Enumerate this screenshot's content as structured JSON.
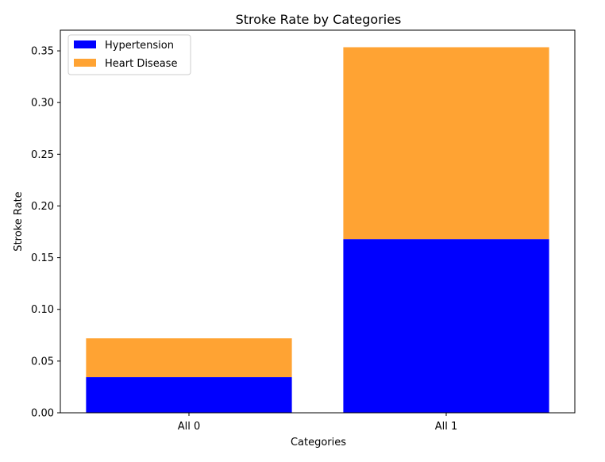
{
  "chart_data": {
    "type": "bar",
    "stacked": true,
    "title": "Stroke Rate by Categories",
    "xlabel": "Categories",
    "ylabel": "Stroke Rate",
    "categories": [
      "All 0",
      "All 1"
    ],
    "series": [
      {
        "name": "Hypertension",
        "values": [
          0.0345,
          0.168
        ],
        "color": "#0000ff"
      },
      {
        "name": "Heart Disease",
        "values": [
          0.0375,
          0.1855
        ],
        "color": "#ffa333"
      }
    ],
    "ylim": [
      0,
      0.37
    ],
    "yticks": [
      0.0,
      0.05,
      0.1,
      0.15,
      0.2,
      0.25,
      0.3,
      0.35
    ],
    "ytick_labels": [
      "0.00",
      "0.05",
      "0.10",
      "0.15",
      "0.20",
      "0.25",
      "0.30",
      "0.35"
    ],
    "legend_position": "top-left",
    "grid": false
  }
}
